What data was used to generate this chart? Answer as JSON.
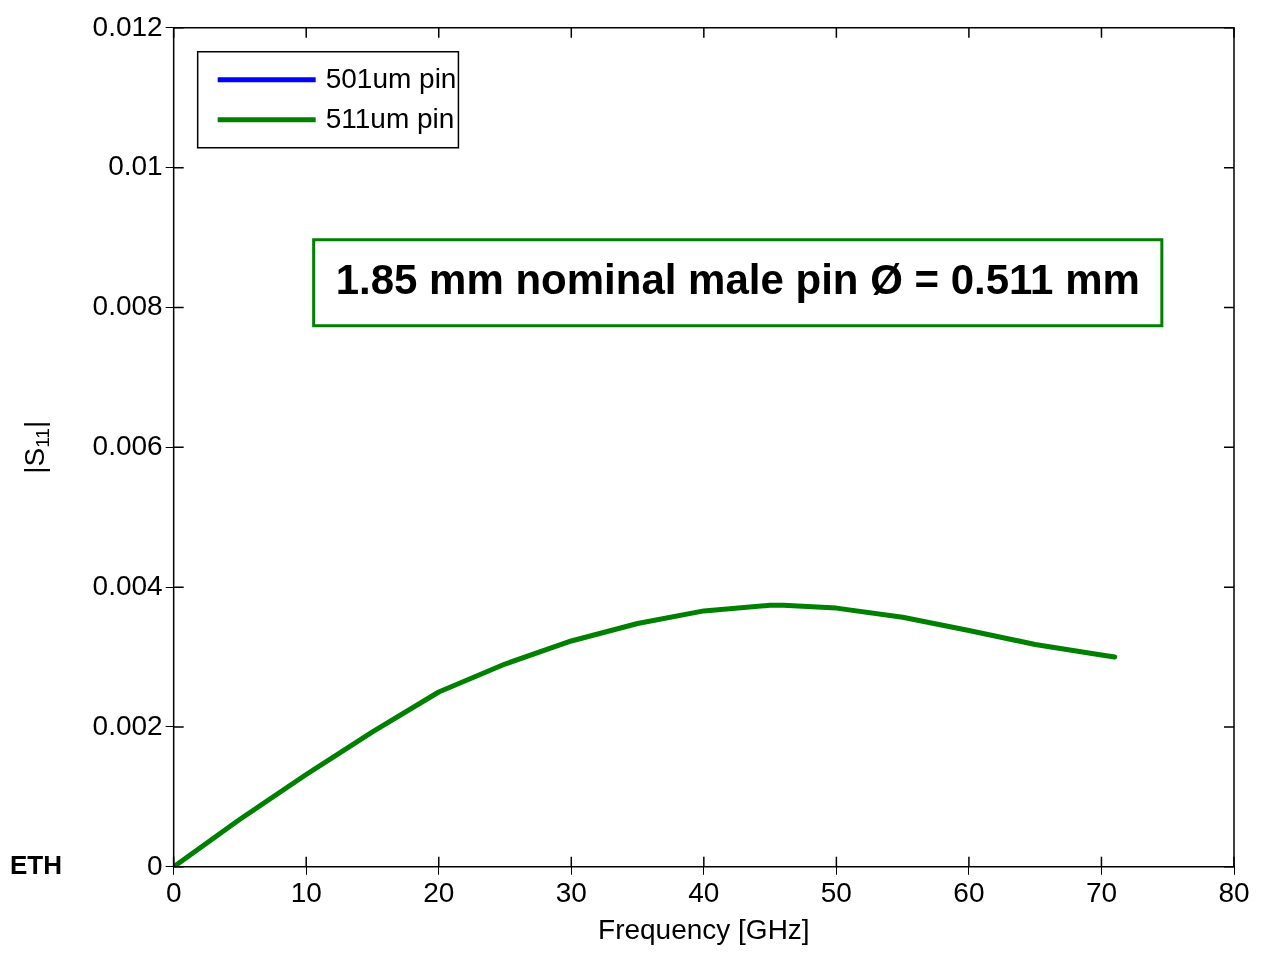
{
  "chart_data": {
    "type": "line",
    "xlabel": "Frequency [GHz]",
    "ylabel": "|S$_{11}$|",
    "x": [
      0,
      5,
      10,
      15,
      20,
      25,
      30,
      35,
      40,
      45,
      46,
      50,
      55,
      60,
      65,
      70,
      71
    ],
    "series": [
      {
        "name": "501um pin",
        "color": "#0000ff",
        "values": [
          null,
          null,
          null,
          null,
          null,
          null,
          null,
          null,
          null,
          null,
          null,
          null,
          null,
          null,
          null,
          null,
          null
        ]
      },
      {
        "name": "511um pin",
        "color": "#008000",
        "values": [
          0,
          0.00068,
          0.00132,
          0.00193,
          0.0025,
          0.0029,
          0.00323,
          0.00348,
          0.00366,
          0.00374,
          0.00374,
          0.0037,
          0.00357,
          0.00338,
          0.00318,
          0.00303,
          0.003
        ]
      }
    ],
    "xlim": [
      0,
      80
    ],
    "xticks": [
      0,
      10,
      20,
      30,
      40,
      50,
      60,
      70,
      80
    ],
    "ylim": [
      0,
      0.012
    ],
    "yticks": [
      0,
      0.002,
      0.004,
      0.006,
      0.008,
      0.01,
      0.012
    ],
    "grid": false,
    "legend": "top left",
    "marker": "none",
    "line_style": "solid",
    "annotations": [
      "ETH",
      "1.85 mm nominal male pin Ø = 0.511 mm"
    ]
  }
}
